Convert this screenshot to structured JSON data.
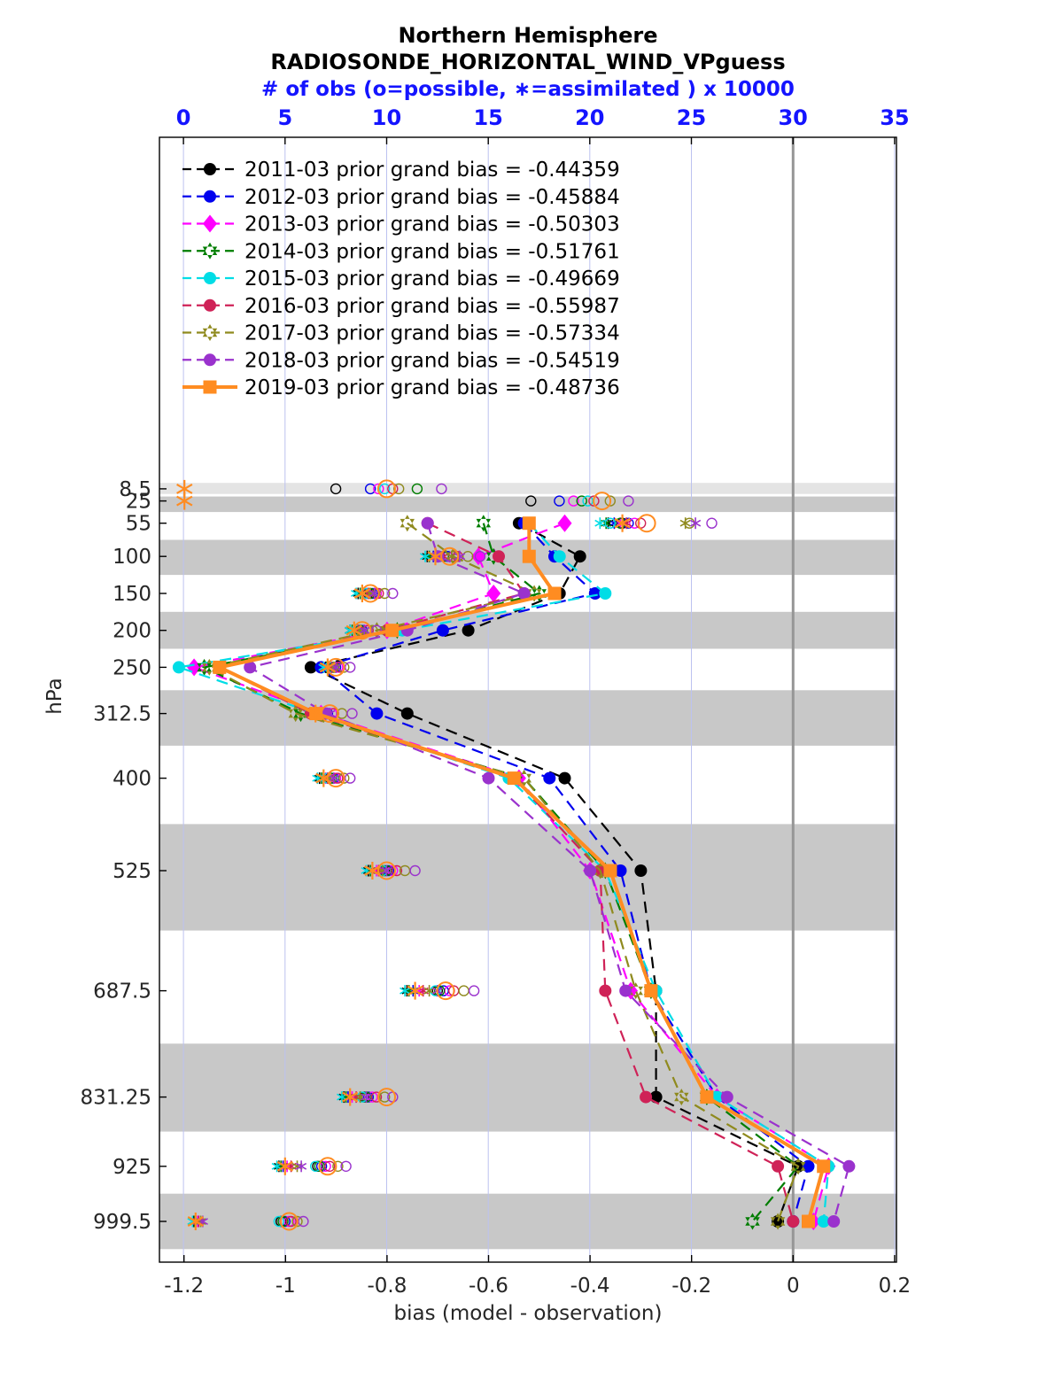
{
  "titles": {
    "line1": "Northern Hemisphere",
    "line2": "RADIOSONDE_HORIZONTAL_WIND_VPguess",
    "obs_axis_label": "# of obs (o=possible, ∗=assimilated ) x 10000",
    "bias_axis_label": "bias (model - observation)",
    "pressure_axis_label": "hPa"
  },
  "axes": {
    "top": {
      "labels": [
        "0",
        "5",
        "10",
        "15",
        "20",
        "25",
        "30",
        "35"
      ],
      "values": [
        0,
        5,
        10,
        15,
        20,
        25,
        30,
        35
      ],
      "color": "#1414ff"
    },
    "bottom": {
      "labels": [
        "-1.2",
        "-1",
        "-0.8",
        "-0.6",
        "-0.4",
        "-0.2",
        "0",
        "0.2"
      ],
      "values": [
        -1.2,
        -1,
        -0.8,
        -0.6,
        -0.4,
        -0.2,
        0,
        0.2
      ]
    },
    "left": {
      "labels": [
        "8.5",
        "25",
        "55",
        "100",
        "150",
        "200",
        "250",
        "312.5",
        "400",
        "525",
        "687.5",
        "831.25",
        "925",
        "999.5"
      ],
      "values": [
        8.5,
        25,
        55,
        100,
        150,
        200,
        250,
        312.5,
        400,
        525,
        687.5,
        831.25,
        925,
        999.5
      ]
    },
    "bias_range": [
      -1.2483,
      0.2036
    ],
    "obs_range": [
      -1.18,
      35.09
    ],
    "pressure_range": [
      -467,
      1054.6
    ]
  },
  "grid": {
    "color": "#bcc2f0",
    "width": 1
  },
  "zero_line": {
    "bias": 0,
    "color": "#969696",
    "width": 3
  },
  "bands": [
    {
      "from": 0.5,
      "to": 15.5,
      "color": "#e4e4e4"
    },
    {
      "from": 19,
      "to": 40,
      "color": "#c8c8c8"
    },
    {
      "from": 77.5,
      "to": 125,
      "color": "#c8c8c8"
    },
    {
      "from": 175,
      "to": 225,
      "color": "#c8c8c8"
    },
    {
      "from": 281,
      "to": 356,
      "color": "#c8c8c8"
    },
    {
      "from": 462,
      "to": 606,
      "color": "#c8c8c8"
    },
    {
      "from": 759,
      "to": 878,
      "color": "#c8c8c8"
    },
    {
      "from": 962,
      "to": 1037,
      "color": "#c8c8c8"
    }
  ],
  "chart_data": {
    "type": "line",
    "title": "Northern Hemisphere RADIOSONDE_HORIZONTAL_WIND_VPguess",
    "xlabel": "bias (model - observation)",
    "x2label": "# of obs (o=possible, ∗=assimilated ) x 10000",
    "ylabel": "hPa",
    "xlim_bias": [
      -1.2,
      0.2
    ],
    "xlim_obs": [
      0,
      35
    ],
    "bias_levels": [
      55,
      100,
      150,
      200,
      250,
      312.5,
      400,
      525,
      687.5,
      831.25,
      925,
      999.5
    ],
    "obs_levels": [
      8.5,
      25,
      55,
      100,
      150,
      200,
      250,
      312.5,
      400,
      525,
      687.5,
      831.25,
      925,
      999.5
    ],
    "legend_position": "top-left",
    "series": [
      {
        "year": "2011-03",
        "legend": "2011-03 prior grand bias = -0.44359",
        "grand_bias": -0.44359,
        "color": "#000000",
        "marker": "circle",
        "line_style": "dashed",
        "emphasis": false,
        "bias": [
          -0.54,
          -0.42,
          -0.46,
          -0.64,
          -0.95,
          -0.76,
          -0.45,
          -0.3,
          -0.27,
          -0.27,
          0.01,
          -0.03
        ],
        "obs_possible": [
          7.5,
          17.1,
          21.6,
          12.6,
          9.1,
          8.6,
          7.3,
          6.9,
          7.2,
          9.9,
          12.5,
          8.9,
          6.6,
          4.8
        ],
        "obs_assimilated": [
          null,
          null,
          20.9,
          12.0,
          8.6,
          8.2,
          7.0,
          6.3,
          6.7,
          9.1,
          11.0,
          7.9,
          4.7,
          0.5
        ]
      },
      {
        "year": "2012-03",
        "legend": "2012-03 prior grand bias = -0.45884",
        "grand_bias": -0.45884,
        "color": "#0000ee",
        "marker": "circle",
        "line_style": "dashed",
        "emphasis": false,
        "bias": [
          -0.53,
          -0.47,
          -0.39,
          -0.69,
          -0.93,
          -0.82,
          -0.48,
          -0.34,
          -0.28,
          -0.15,
          0.03,
          0.0
        ],
        "obs_possible": [
          9.2,
          18.5,
          21.9,
          13.0,
          9.3,
          8.8,
          7.5,
          7.1,
          7.4,
          10.1,
          12.8,
          9.1,
          6.8,
          5.0
        ],
        "obs_assimilated": [
          null,
          null,
          21.2,
          12.3,
          8.8,
          8.4,
          7.1,
          6.5,
          6.9,
          9.3,
          11.3,
          8.1,
          4.9,
          0.6
        ]
      },
      {
        "year": "2013-03",
        "legend": "2013-03 prior grand bias = -0.50303",
        "grand_bias": -0.50303,
        "color": "#ff00ff",
        "marker": "diamond",
        "line_style": "dashed",
        "emphasis": false,
        "bias": [
          -0.45,
          -0.62,
          -0.59,
          -0.8,
          -1.18,
          -0.93,
          -0.54,
          -0.4,
          -0.32,
          -0.15,
          0.07,
          0.04
        ],
        "obs_possible": [
          9.6,
          19.2,
          22.2,
          13.3,
          9.5,
          9.0,
          7.6,
          7.3,
          7.5,
          10.3,
          13.1,
          9.3,
          7.0,
          5.2
        ],
        "obs_assimilated": [
          null,
          null,
          21.5,
          12.6,
          9.0,
          8.5,
          7.2,
          6.7,
          7.0,
          9.5,
          11.6,
          8.3,
          5.1,
          0.7
        ]
      },
      {
        "year": "2014-03",
        "legend": "2014-03 prior grand bias = -0.51761",
        "grand_bias": -0.51761,
        "color": "#007d00",
        "marker": "hexstar",
        "line_style": "dashed",
        "emphasis": false,
        "bias": [
          -0.61,
          -0.59,
          -0.5,
          -0.78,
          -1.16,
          -0.97,
          -0.53,
          -0.37,
          -0.28,
          -0.17,
          0.01,
          -0.08
        ],
        "obs_possible": [
          11.5,
          19.6,
          21.5,
          12.8,
          9.2,
          8.7,
          7.4,
          7.0,
          7.3,
          10.0,
          12.6,
          9.0,
          6.7,
          4.9
        ],
        "obs_assimilated": [
          null,
          null,
          20.8,
          12.1,
          8.7,
          8.3,
          7.05,
          6.4,
          6.8,
          9.2,
          11.1,
          8.0,
          4.8,
          0.55
        ]
      },
      {
        "year": "2015-03",
        "legend": "2015-03 prior grand bias = -0.49669",
        "grand_bias": -0.49669,
        "color": "#00dde6",
        "marker": "circle",
        "line_style": "dashed",
        "emphasis": false,
        "bias": [
          -0.52,
          -0.46,
          -0.37,
          -0.77,
          -1.21,
          -0.94,
          -0.56,
          -0.37,
          -0.27,
          -0.15,
          0.07,
          0.06
        ],
        "obs_possible": [
          9.9,
          19.9,
          21.0,
          12.5,
          9.0,
          8.5,
          7.2,
          6.8,
          7.1,
          9.8,
          12.4,
          8.8,
          6.5,
          4.7
        ],
        "obs_assimilated": [
          null,
          null,
          20.5,
          11.9,
          8.5,
          8.2,
          6.9,
          6.2,
          6.6,
          9.0,
          10.9,
          7.8,
          4.6,
          0.45
        ]
      },
      {
        "year": "2016-03",
        "legend": "2016-03 prior grand bias = -0.55987",
        "grand_bias": -0.55987,
        "color": "#cf2257",
        "marker": "circle",
        "line_style": "dashed",
        "emphasis": false,
        "bias": [
          -0.72,
          -0.58,
          -0.53,
          -0.8,
          -1.13,
          -0.95,
          -0.55,
          -0.38,
          -0.37,
          -0.29,
          -0.03,
          0.0
        ],
        "obs_possible": [
          10.3,
          20.2,
          22.5,
          13.5,
          9.6,
          9.1,
          7.7,
          7.4,
          7.6,
          10.5,
          13.3,
          9.5,
          7.2,
          5.3
        ],
        "obs_assimilated": [
          null,
          null,
          21.8,
          12.8,
          9.1,
          8.6,
          7.3,
          6.8,
          7.1,
          9.6,
          11.8,
          8.5,
          5.3,
          0.75
        ]
      },
      {
        "year": "2017-03",
        "legend": "2017-03 prior grand bias = -0.57334",
        "grand_bias": -0.57334,
        "color": "#8f8a1e",
        "marker": "hexstar",
        "line_style": "dashed",
        "emphasis": false,
        "bias": [
          -0.76,
          -0.67,
          -0.51,
          -0.82,
          -1.15,
          -0.98,
          -0.53,
          -0.38,
          -0.31,
          -0.22,
          0.01,
          -0.03
        ],
        "obs_possible": [
          10.6,
          21.0,
          24.9,
          14.0,
          9.9,
          9.3,
          7.9,
          7.8,
          7.9,
          10.9,
          13.8,
          9.9,
          7.6,
          5.6
        ],
        "obs_assimilated": [
          null,
          null,
          24.7,
          13.2,
          9.2,
          8.7,
          7.4,
          7.0,
          7.2,
          9.8,
          12.1,
          8.7,
          5.6,
          0.85
        ]
      },
      {
        "year": "2018-03",
        "legend": "2018-03 prior grand bias = -0.54519",
        "grand_bias": -0.54519,
        "color": "#9a32cd",
        "marker": "circle",
        "line_style": "dashed",
        "emphasis": false,
        "bias": [
          -0.72,
          -0.7,
          -0.53,
          -0.76,
          -1.07,
          -0.92,
          -0.6,
          -0.4,
          -0.33,
          -0.13,
          0.11,
          0.08
        ],
        "obs_possible": [
          12.7,
          21.9,
          26.0,
          14.6,
          10.3,
          9.5,
          8.2,
          8.3,
          8.2,
          11.4,
          14.3,
          10.3,
          8.0,
          5.9
        ],
        "obs_assimilated": [
          null,
          null,
          25.2,
          13.6,
          9.4,
          8.9,
          7.5,
          7.2,
          7.4,
          10.0,
          12.5,
          9.0,
          5.8,
          0.95
        ]
      },
      {
        "year": "2019-03",
        "legend": "2019-03 prior grand bias = -0.48736",
        "grand_bias": -0.48736,
        "color": "#ff8c21",
        "marker": "square",
        "line_style": "solid",
        "emphasis": true,
        "bias": [
          -0.52,
          -0.52,
          -0.47,
          -0.79,
          -1.13,
          -0.94,
          -0.55,
          -0.36,
          -0.28,
          -0.17,
          0.06,
          0.03
        ],
        "obs_possible": [
          10.0,
          20.6,
          22.8,
          13.1,
          9.2,
          8.8,
          7.5,
          7.2,
          7.5,
          10.0,
          12.9,
          10.0,
          7.1,
          5.2
        ],
        "obs_assimilated": [
          0.05,
          0.05,
          21.6,
          12.4,
          8.8,
          8.4,
          7.1,
          6.5,
          6.9,
          9.3,
          11.4,
          8.2,
          5.0,
          0.6
        ]
      }
    ]
  }
}
